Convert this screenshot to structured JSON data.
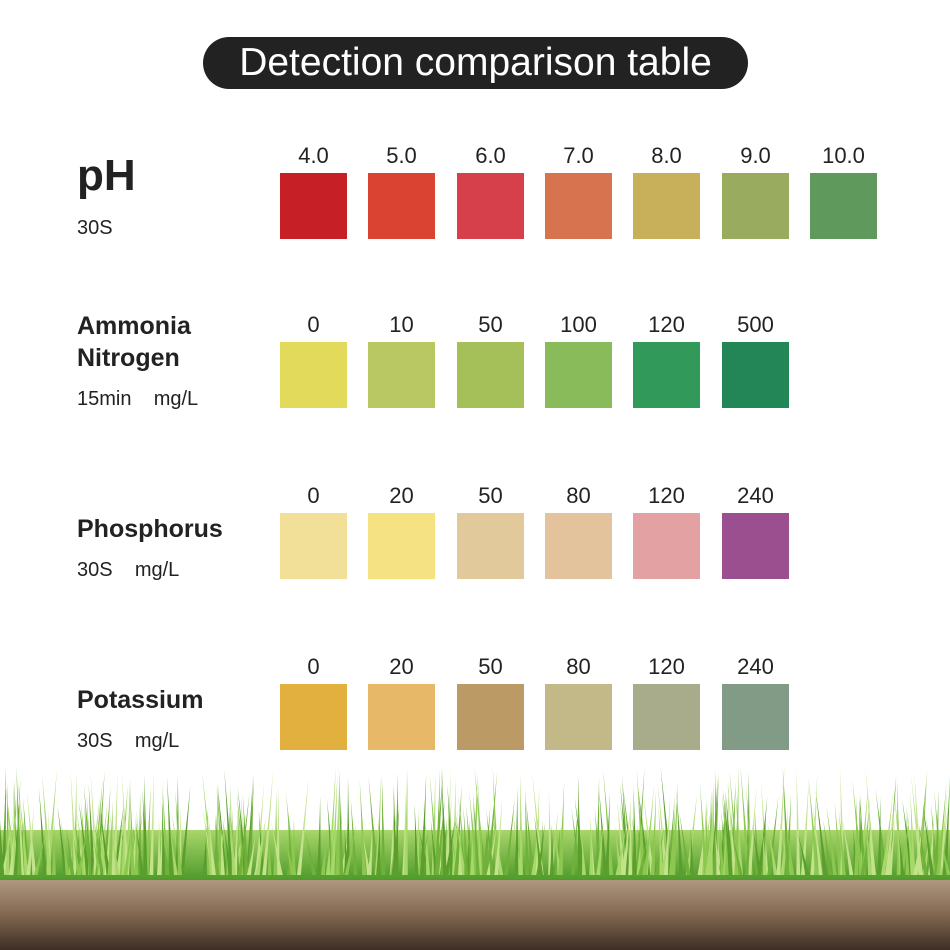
{
  "title": "Detection comparison table",
  "rows": [
    {
      "name": "pH",
      "sub": "30S",
      "values": [
        "4.0",
        "5.0",
        "6.0",
        "7.0",
        "8.0",
        "9.0",
        "10.0"
      ],
      "colors": [
        "#c62026",
        "#da4231",
        "#d5404a",
        "#d8734f",
        "#c8b05a",
        "#98ab5e",
        "#5f995c"
      ]
    },
    {
      "name": "Ammonia Nitrogen",
      "sub": "15min    mg/L",
      "values": [
        "0",
        "10",
        "50",
        "100",
        "120",
        "500"
      ],
      "colors": [
        "#e2da5a",
        "#b9c862",
        "#a5c059",
        "#89bb5a",
        "#319a5a",
        "#238656"
      ]
    },
    {
      "name": "Phosphorus",
      "sub": "30S    mg/L",
      "values": [
        "0",
        "20",
        "50",
        "80",
        "120",
        "240"
      ],
      "colors": [
        "#f2df98",
        "#f5e383",
        "#e2c99c",
        "#e3c39c",
        "#e3a1a3",
        "#9b4f8f"
      ]
    },
    {
      "name": "Potassium",
      "sub": "30S    mg/L",
      "values": [
        "0",
        "20",
        "50",
        "80",
        "120",
        "240"
      ],
      "colors": [
        "#e2b03e",
        "#e6b868",
        "#bb9a66",
        "#c2b888",
        "#a8ac8b",
        "#829b86"
      ]
    }
  ]
}
